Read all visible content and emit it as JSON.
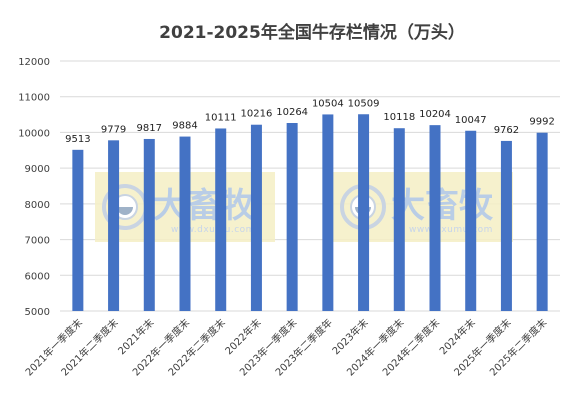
{
  "chart_data": {
    "type": "bar",
    "title": "2021-2025年全国牛存栏情况（万头）",
    "xlabel": "",
    "ylabel": "",
    "ylim": [
      5000,
      12000
    ],
    "yticks": [
      5000,
      6000,
      7000,
      8000,
      9000,
      10000,
      11000,
      12000
    ],
    "grid": true,
    "legend": "none",
    "categories": [
      "2021年一季度末",
      "2021年二季度末",
      "2021年末",
      "2022年一季度末",
      "2022年二季度末",
      "2022年末",
      "2023年一季度末",
      "2023年二季度年",
      "2023年末",
      "2024年一季度末",
      "2024年二季度末",
      "2024年末",
      "2025年一季度末",
      "2025年二季度末"
    ],
    "values": [
      9513,
      9779,
      9817,
      9884,
      10111,
      10216,
      10264,
      10504,
      10509,
      10118,
      10204,
      10047,
      9762,
      9992
    ],
    "colors": {
      "bar": "#4472C4",
      "grid": "#d9d9d9",
      "text": "#404040",
      "watermark_box": "#f5efc4",
      "watermark_text": "#b9cde6"
    }
  },
  "watermark": {
    "name": "大畜牧",
    "site": "www.dxumu.com",
    "icon": "dxumu-logo-icon"
  }
}
